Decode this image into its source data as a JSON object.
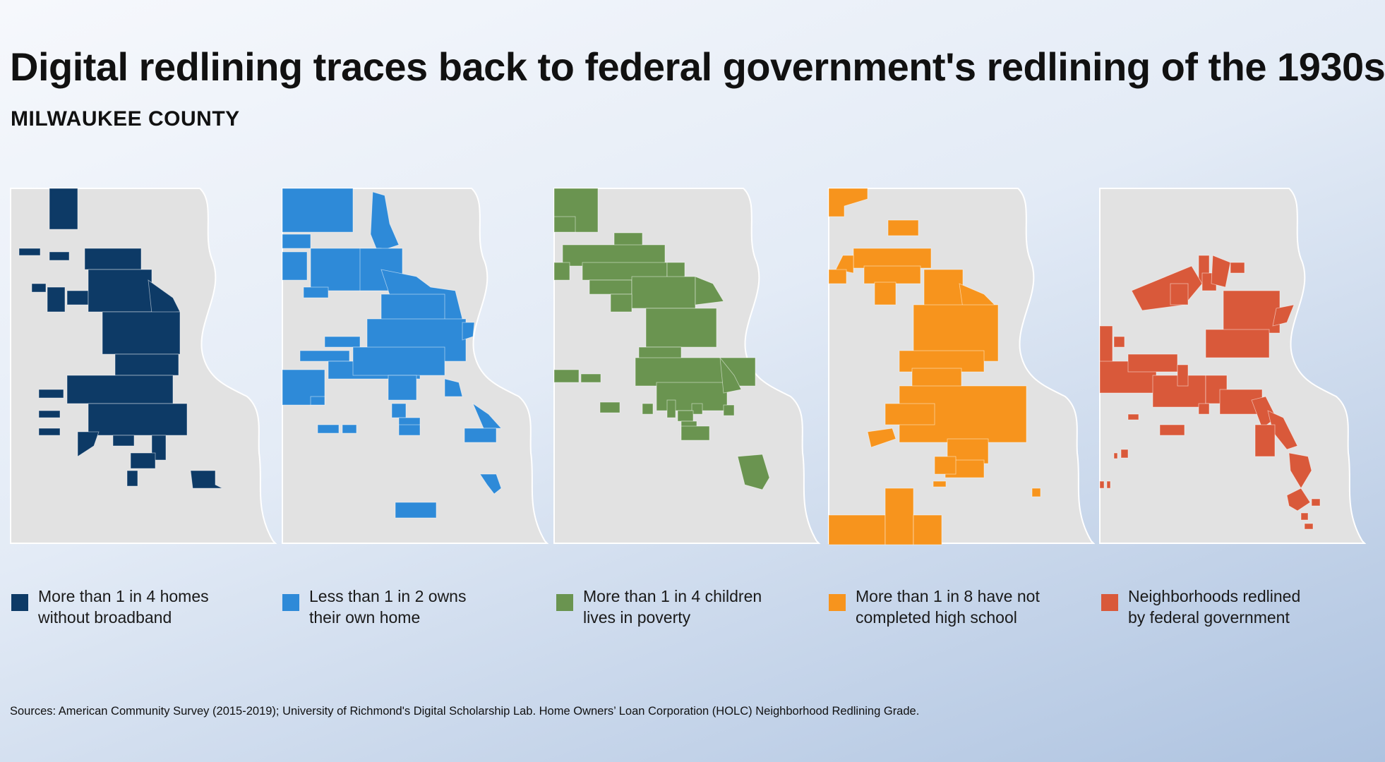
{
  "header": {
    "title": "Digital redlining traces back to federal government's redlining of the 1930s",
    "subtitle": "MILWAUKEE COUNTY"
  },
  "colors": {
    "county_fill": "#e2e2e2",
    "county_edge": "#ffffff"
  },
  "maps": [
    {
      "id": "broadband",
      "color": "#0d3a66",
      "legend": [
        "More than 1 in 4 homes",
        "without broadband"
      ],
      "icon": "county-map"
    },
    {
      "id": "homeownership",
      "color": "#2e8ad8",
      "legend": [
        "Less than 1 in 2 owns",
        "their own home"
      ],
      "icon": "county-map"
    },
    {
      "id": "child-poverty",
      "color": "#6a9450",
      "legend": [
        "More than 1 in 4 children",
        "lives in poverty"
      ],
      "icon": "county-map"
    },
    {
      "id": "education",
      "color": "#f7941d",
      "legend": [
        "More than 1 in 8 have not",
        "completed high school"
      ],
      "icon": "county-map"
    },
    {
      "id": "holc-redlined",
      "color": "#d9593a",
      "legend": [
        "Neighborhoods redlined",
        "by federal government"
      ],
      "icon": "county-map"
    }
  ],
  "sources": "Sources: American Community Survey (2015-2019); University of Richmond's Digital Scholarship Lab. Home Owners’ Loan Corporation (HOLC) Neighborhood Redlining Grade."
}
